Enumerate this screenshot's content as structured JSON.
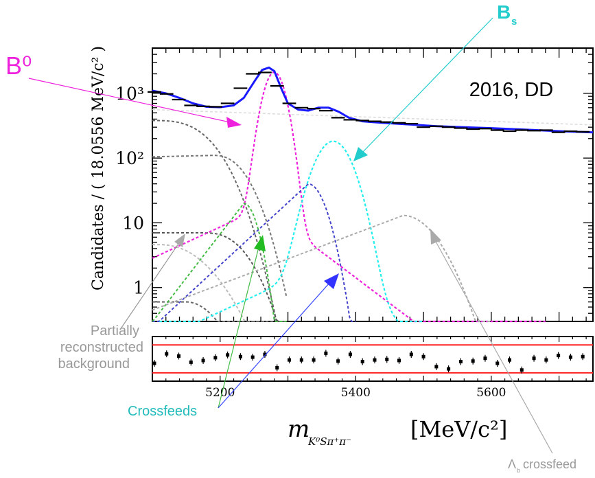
{
  "chart_data": {
    "type": "line",
    "title": "",
    "panel_label": "2016, DD",
    "ylabel": "Candidates / ( 18.0556 MeV/c² )",
    "xlabel_symbol": "m",
    "xlabel_subscript": "K⁰Sπ⁺π⁻",
    "xlabel_unit": "[MeV/c²]",
    "yscale": "log",
    "xlim": [
      5100,
      5750
    ],
    "ylim": [
      0.3,
      5000
    ],
    "x_ticks": [
      "5200",
      "5400",
      "5600"
    ],
    "y_ticks": [
      "1",
      "10",
      "10²",
      "10³"
    ],
    "colors": {
      "total_fit": "#1a1aff",
      "B0": "#ee22dd",
      "Bs": "#22dddd",
      "crossfeed_green": "#44bb44",
      "crossfeed_blue": "#3333ff",
      "partial_reco": "#aaaaaa",
      "lambda_b": "#aaaaaa",
      "pull_band": "#ff2222",
      "data": "#000000"
    },
    "annotations": {
      "B0": "B⁰",
      "Bs_main": "B",
      "Bs_sub": "s",
      "partial_line1": "Partially",
      "partial_line2": "reconstructed",
      "partial_line3": "background",
      "crossfeeds": "Crossfeeds",
      "lambdab_symbol": "Λ",
      "lambdab_sub": "b",
      "lambdab_text": "crossfeed"
    },
    "data_points": {
      "x": [
        5103,
        5121,
        5139,
        5157,
        5175,
        5193,
        5211,
        5230,
        5248,
        5266,
        5284,
        5302,
        5320,
        5338,
        5356,
        5374,
        5392,
        5410,
        5428,
        5446,
        5464,
        5482,
        5500,
        5519,
        5537,
        5555,
        5573,
        5591,
        5609,
        5627,
        5645,
        5663,
        5681,
        5699,
        5717,
        5735
      ],
      "y": [
        1050,
        980,
        800,
        650,
        630,
        620,
        700,
        1200,
        2000,
        2100,
        1300,
        700,
        600,
        580,
        540,
        420,
        390,
        380,
        370,
        360,
        350,
        340,
        300,
        310,
        300,
        290,
        280,
        285,
        270,
        260,
        270,
        265,
        270,
        250,
        260,
        255
      ]
    },
    "total_fit": {
      "x": [
        5100,
        5120,
        5140,
        5160,
        5180,
        5200,
        5220,
        5235,
        5250,
        5262,
        5272,
        5280,
        5290,
        5300,
        5315,
        5330,
        5345,
        5360,
        5375,
        5390,
        5410,
        5440,
        5480,
        5520,
        5560,
        5600,
        5650,
        5700,
        5750
      ],
      "y": [
        1100,
        1000,
        850,
        700,
        620,
        610,
        650,
        850,
        1500,
        2300,
        2500,
        2200,
        1200,
        700,
        560,
        540,
        600,
        600,
        520,
        420,
        370,
        350,
        330,
        310,
        300,
        290,
        275,
        260,
        250
      ]
    },
    "pulls": {
      "x": [
        5103,
        5121,
        5139,
        5157,
        5175,
        5193,
        5211,
        5230,
        5248,
        5266,
        5284,
        5302,
        5320,
        5338,
        5356,
        5374,
        5392,
        5410,
        5428,
        5446,
        5464,
        5482,
        5500,
        5519,
        5537,
        5555,
        5573,
        5591,
        5609,
        5627,
        5645,
        5663,
        5681,
        5699,
        5717,
        5735
      ],
      "y": [
        -0.8,
        0.9,
        0.5,
        -0.6,
        -0.3,
        0.2,
        0.7,
        0.4,
        0.3,
        0.8,
        -1.6,
        -0.2,
        -0.2,
        -0.2,
        1.0,
        -0.4,
        0.8,
        -0.5,
        -0.2,
        -0.1,
        -0.3,
        0.8,
        0.4,
        -1.4,
        -1.8,
        -0.5,
        -0.4,
        0.1,
        -0.8,
        -0.2,
        -2.0,
        0.1,
        -0.2,
        0.6,
        0.3,
        0.4
      ],
      "band": [
        -2.5,
        2.5
      ],
      "ylim": [
        -4,
        4
      ]
    }
  }
}
